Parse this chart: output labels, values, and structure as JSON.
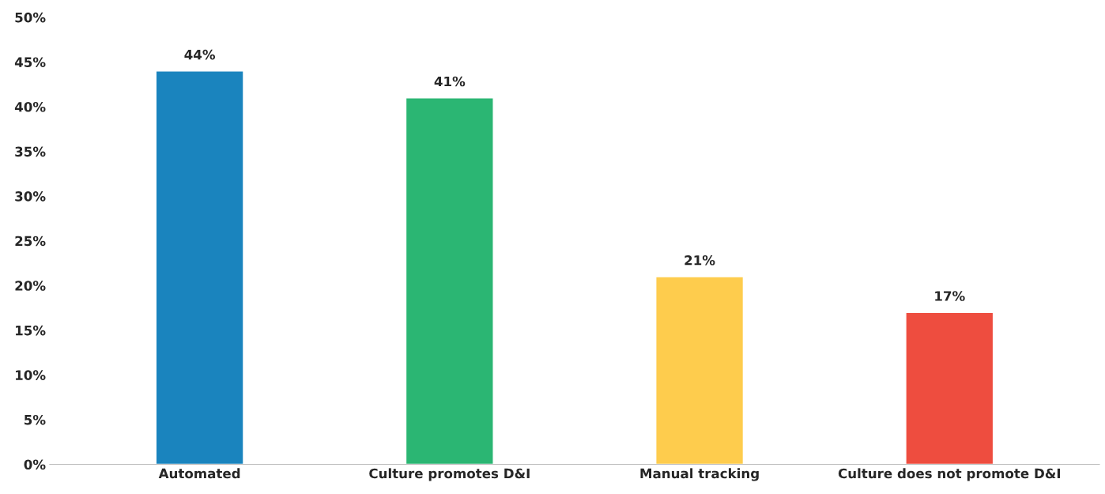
{
  "chart_data": {
    "type": "bar",
    "categories": [
      "Automated",
      "Culture promotes D&I",
      "Manual tracking",
      "Culture does not promote D&I"
    ],
    "values": [
      44,
      41,
      21,
      17
    ],
    "colors": [
      "#1a84be",
      "#2bb673",
      "#fecc4d",
      "#ee4d3f"
    ],
    "value_labels": [
      "44%",
      "41%",
      "21%",
      "17%"
    ],
    "ylim": [
      0,
      50
    ],
    "yticks": [
      {
        "value": 0,
        "label": "0%"
      },
      {
        "value": 5,
        "label": "5%"
      },
      {
        "value": 10,
        "label": "10%"
      },
      {
        "value": 15,
        "label": "15%"
      },
      {
        "value": 20,
        "label": "20%"
      },
      {
        "value": 25,
        "label": "25%"
      },
      {
        "value": 30,
        "label": "30%"
      },
      {
        "value": 35,
        "label": "35%"
      },
      {
        "value": 40,
        "label": "40%"
      },
      {
        "value": 45,
        "label": "45%"
      },
      {
        "value": 50,
        "label": "50%"
      }
    ],
    "grid": false
  }
}
